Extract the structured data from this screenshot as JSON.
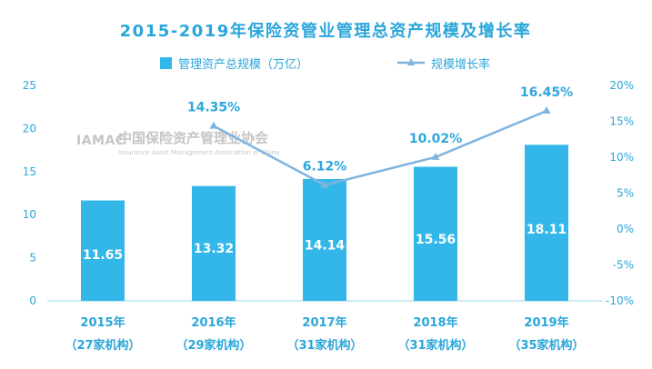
{
  "chart_data": {
    "type": "bar",
    "title": "2015-2019年保险资管业管理总资产规模及增长率",
    "categories": [
      "2015年",
      "2016年",
      "2017年",
      "2018年",
      "2019年"
    ],
    "category_sublabels": [
      "（27家机构）",
      "（29家机构）",
      "（31家机构）",
      "（31家机构）",
      "（35家机构）"
    ],
    "series": [
      {
        "name": "管理资产总规模（万亿）",
        "type": "bar",
        "axis": "left",
        "values": [
          11.65,
          13.32,
          14.14,
          15.56,
          18.11
        ],
        "data_labels": [
          "11.65",
          "13.32",
          "14.14",
          "15.56",
          "18.11"
        ]
      },
      {
        "name": "规模增长率",
        "type": "line",
        "axis": "right",
        "values": [
          null,
          14.35,
          6.12,
          10.02,
          16.45
        ],
        "data_labels": [
          "",
          "14.35%",
          "6.12%",
          "10.02%",
          "16.45%"
        ]
      }
    ],
    "left_axis": {
      "ylim": [
        0,
        25
      ],
      "ticks": [
        0,
        5,
        10,
        15,
        20,
        25
      ],
      "tick_labels": [
        "0",
        "5",
        "10",
        "15",
        "20",
        "25"
      ]
    },
    "right_axis": {
      "ylim": [
        -10,
        20
      ],
      "ticks": [
        -10,
        -5,
        0,
        5,
        10,
        15,
        20
      ],
      "tick_labels": [
        "-10%",
        "-5%",
        "0%",
        "5%",
        "10%",
        "15%",
        "20%"
      ]
    },
    "legend_position": "top",
    "grid": false,
    "colors": {
      "title": "#2aa6da",
      "bar": "#33b7e9",
      "line": "#7fb4df",
      "bar_label": "#ffffff",
      "line_label": "#2ea7dd",
      "axis_tick": "#2aa6da",
      "category_label": "#2aa6da",
      "watermark": "#bfbfbf"
    },
    "watermark": {
      "logo_text": "IAMAC",
      "name": "中国保险资产管理业协会",
      "subtitle": "Insurance Asset Management Association of China"
    }
  }
}
